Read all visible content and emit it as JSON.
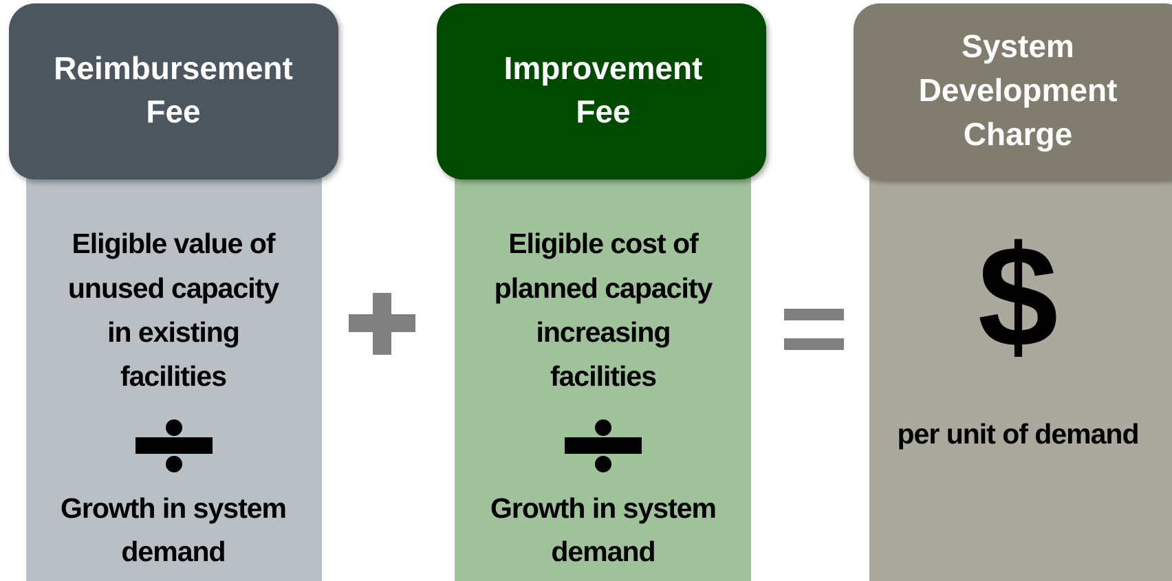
{
  "columns": [
    {
      "header": [
        "Reimbursement",
        "Fee"
      ],
      "numerator": [
        "Eligible value of",
        "unused capacity",
        "in existing",
        "facilities"
      ],
      "denominator": [
        "Growth in system",
        "demand"
      ]
    },
    {
      "header": [
        "Improvement",
        "Fee"
      ],
      "numerator": [
        "Eligible cost of",
        "planned capacity",
        "increasing",
        "facilities"
      ],
      "denominator": [
        "Growth in system",
        "demand"
      ]
    },
    {
      "header": [
        "System",
        "Development",
        "Charge"
      ],
      "symbol": "$",
      "text": "per unit of demand"
    }
  ]
}
